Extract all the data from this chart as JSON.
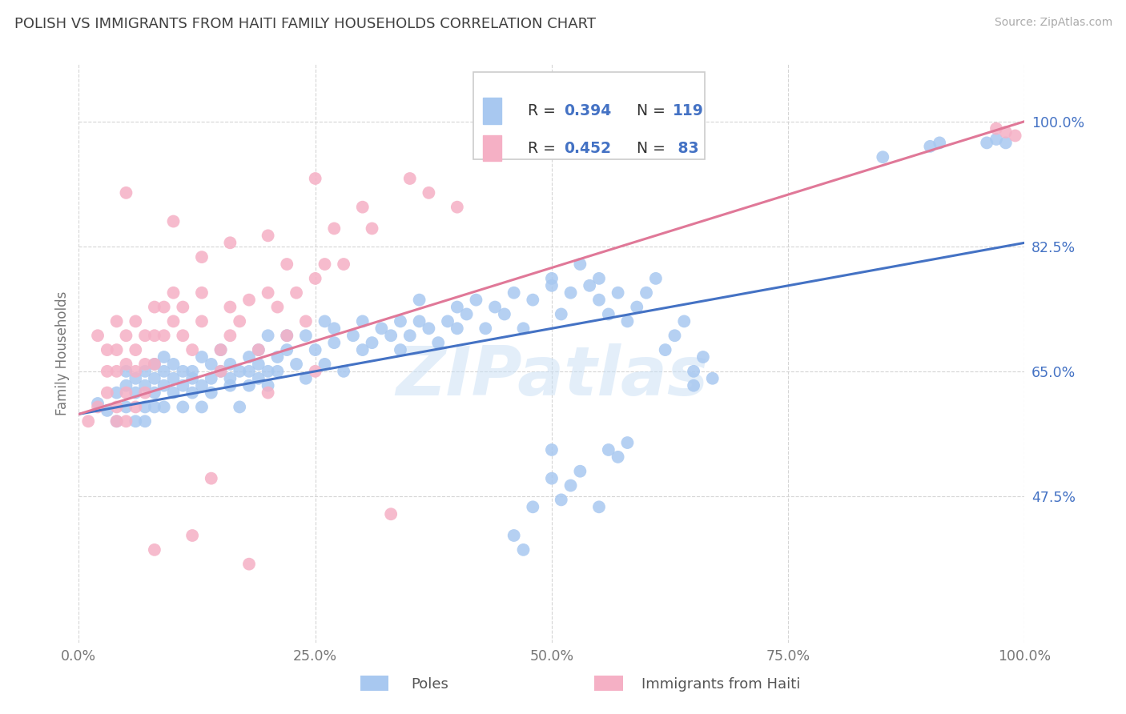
{
  "title": "POLISH VS IMMIGRANTS FROM HAITI FAMILY HOUSEHOLDS CORRELATION CHART",
  "source": "Source: ZipAtlas.com",
  "ylabel": "Family Households",
  "watermark": "ZIPatlas",
  "legend_blue_r": "0.394",
  "legend_blue_n": "119",
  "legend_pink_r": "0.452",
  "legend_pink_n": " 83",
  "xlim": [
    0.0,
    1.0
  ],
  "ylim": [
    0.27,
    1.08
  ],
  "ytick_labels": [
    "47.5%",
    "65.0%",
    "82.5%",
    "100.0%"
  ],
  "ytick_values": [
    0.475,
    0.65,
    0.825,
    1.0
  ],
  "xtick_labels": [
    "0.0%",
    "25.0%",
    "50.0%",
    "75.0%",
    "100.0%"
  ],
  "xtick_values": [
    0.0,
    0.25,
    0.5,
    0.75,
    1.0
  ],
  "blue_color": "#a8c8f0",
  "pink_color": "#f5b0c5",
  "blue_line_color": "#4472c4",
  "pink_line_color": "#e07898",
  "title_color": "#404040",
  "blue_scatter": [
    [
      0.02,
      0.605
    ],
    [
      0.03,
      0.595
    ],
    [
      0.04,
      0.62
    ],
    [
      0.04,
      0.58
    ],
    [
      0.05,
      0.63
    ],
    [
      0.05,
      0.6
    ],
    [
      0.05,
      0.65
    ],
    [
      0.06,
      0.58
    ],
    [
      0.06,
      0.62
    ],
    [
      0.06,
      0.64
    ],
    [
      0.07,
      0.6
    ],
    [
      0.07,
      0.63
    ],
    [
      0.07,
      0.65
    ],
    [
      0.07,
      0.58
    ],
    [
      0.08,
      0.62
    ],
    [
      0.08,
      0.64
    ],
    [
      0.08,
      0.66
    ],
    [
      0.08,
      0.6
    ],
    [
      0.09,
      0.63
    ],
    [
      0.09,
      0.65
    ],
    [
      0.09,
      0.67
    ],
    [
      0.09,
      0.6
    ],
    [
      0.1,
      0.64
    ],
    [
      0.1,
      0.62
    ],
    [
      0.1,
      0.66
    ],
    [
      0.11,
      0.63
    ],
    [
      0.11,
      0.65
    ],
    [
      0.11,
      0.6
    ],
    [
      0.12,
      0.64
    ],
    [
      0.12,
      0.62
    ],
    [
      0.12,
      0.65
    ],
    [
      0.13,
      0.67
    ],
    [
      0.13,
      0.6
    ],
    [
      0.13,
      0.63
    ],
    [
      0.14,
      0.66
    ],
    [
      0.14,
      0.62
    ],
    [
      0.14,
      0.64
    ],
    [
      0.15,
      0.68
    ],
    [
      0.15,
      0.65
    ],
    [
      0.16,
      0.63
    ],
    [
      0.16,
      0.66
    ],
    [
      0.16,
      0.64
    ],
    [
      0.17,
      0.65
    ],
    [
      0.17,
      0.6
    ],
    [
      0.18,
      0.63
    ],
    [
      0.18,
      0.67
    ],
    [
      0.18,
      0.65
    ],
    [
      0.19,
      0.64
    ],
    [
      0.19,
      0.66
    ],
    [
      0.19,
      0.68
    ],
    [
      0.2,
      0.65
    ],
    [
      0.2,
      0.7
    ],
    [
      0.2,
      0.63
    ],
    [
      0.21,
      0.67
    ],
    [
      0.21,
      0.65
    ],
    [
      0.22,
      0.68
    ],
    [
      0.22,
      0.7
    ],
    [
      0.23,
      0.66
    ],
    [
      0.24,
      0.7
    ],
    [
      0.24,
      0.64
    ],
    [
      0.25,
      0.68
    ],
    [
      0.26,
      0.72
    ],
    [
      0.26,
      0.66
    ],
    [
      0.27,
      0.69
    ],
    [
      0.27,
      0.71
    ],
    [
      0.28,
      0.65
    ],
    [
      0.29,
      0.7
    ],
    [
      0.3,
      0.72
    ],
    [
      0.3,
      0.68
    ],
    [
      0.31,
      0.69
    ],
    [
      0.32,
      0.71
    ],
    [
      0.33,
      0.7
    ],
    [
      0.34,
      0.72
    ],
    [
      0.34,
      0.68
    ],
    [
      0.35,
      0.7
    ],
    [
      0.36,
      0.72
    ],
    [
      0.36,
      0.75
    ],
    [
      0.37,
      0.71
    ],
    [
      0.38,
      0.69
    ],
    [
      0.39,
      0.72
    ],
    [
      0.4,
      0.74
    ],
    [
      0.4,
      0.71
    ],
    [
      0.41,
      0.73
    ],
    [
      0.42,
      0.75
    ],
    [
      0.43,
      0.71
    ],
    [
      0.44,
      0.74
    ],
    [
      0.45,
      0.73
    ],
    [
      0.46,
      0.76
    ],
    [
      0.47,
      0.71
    ],
    [
      0.48,
      0.75
    ],
    [
      0.5,
      0.78
    ],
    [
      0.5,
      0.77
    ],
    [
      0.51,
      0.73
    ],
    [
      0.52,
      0.76
    ],
    [
      0.53,
      0.8
    ],
    [
      0.54,
      0.77
    ],
    [
      0.55,
      0.75
    ],
    [
      0.55,
      0.78
    ],
    [
      0.56,
      0.73
    ],
    [
      0.57,
      0.76
    ],
    [
      0.58,
      0.72
    ],
    [
      0.59,
      0.74
    ],
    [
      0.6,
      0.76
    ],
    [
      0.61,
      0.78
    ],
    [
      0.62,
      0.68
    ],
    [
      0.63,
      0.7
    ],
    [
      0.64,
      0.72
    ],
    [
      0.65,
      0.65
    ],
    [
      0.65,
      0.63
    ],
    [
      0.66,
      0.67
    ],
    [
      0.67,
      0.64
    ],
    [
      0.46,
      0.42
    ],
    [
      0.47,
      0.4
    ],
    [
      0.48,
      0.46
    ],
    [
      0.5,
      0.5
    ],
    [
      0.5,
      0.54
    ],
    [
      0.51,
      0.47
    ],
    [
      0.52,
      0.49
    ],
    [
      0.53,
      0.51
    ],
    [
      0.55,
      0.46
    ],
    [
      0.56,
      0.54
    ],
    [
      0.57,
      0.53
    ],
    [
      0.58,
      0.55
    ],
    [
      0.98,
      0.97
    ],
    [
      0.97,
      0.975
    ],
    [
      0.96,
      0.97
    ],
    [
      0.9,
      0.965
    ],
    [
      0.91,
      0.97
    ],
    [
      0.85,
      0.95
    ]
  ],
  "pink_scatter": [
    [
      0.01,
      0.58
    ],
    [
      0.02,
      0.7
    ],
    [
      0.02,
      0.6
    ],
    [
      0.03,
      0.68
    ],
    [
      0.03,
      0.65
    ],
    [
      0.03,
      0.62
    ],
    [
      0.04,
      0.72
    ],
    [
      0.04,
      0.68
    ],
    [
      0.04,
      0.65
    ],
    [
      0.04,
      0.6
    ],
    [
      0.04,
      0.58
    ],
    [
      0.05,
      0.7
    ],
    [
      0.05,
      0.66
    ],
    [
      0.05,
      0.62
    ],
    [
      0.05,
      0.58
    ],
    [
      0.06,
      0.72
    ],
    [
      0.06,
      0.68
    ],
    [
      0.06,
      0.65
    ],
    [
      0.06,
      0.6
    ],
    [
      0.07,
      0.7
    ],
    [
      0.07,
      0.66
    ],
    [
      0.07,
      0.62
    ],
    [
      0.08,
      0.74
    ],
    [
      0.08,
      0.7
    ],
    [
      0.08,
      0.66
    ],
    [
      0.09,
      0.74
    ],
    [
      0.09,
      0.7
    ],
    [
      0.1,
      0.76
    ],
    [
      0.1,
      0.72
    ],
    [
      0.11,
      0.74
    ],
    [
      0.11,
      0.7
    ],
    [
      0.12,
      0.68
    ],
    [
      0.13,
      0.76
    ],
    [
      0.13,
      0.72
    ],
    [
      0.15,
      0.68
    ],
    [
      0.15,
      0.65
    ],
    [
      0.16,
      0.74
    ],
    [
      0.16,
      0.7
    ],
    [
      0.17,
      0.72
    ],
    [
      0.18,
      0.75
    ],
    [
      0.19,
      0.68
    ],
    [
      0.2,
      0.76
    ],
    [
      0.2,
      0.62
    ],
    [
      0.21,
      0.74
    ],
    [
      0.22,
      0.8
    ],
    [
      0.22,
      0.7
    ],
    [
      0.23,
      0.76
    ],
    [
      0.24,
      0.72
    ],
    [
      0.25,
      0.78
    ],
    [
      0.25,
      0.65
    ],
    [
      0.26,
      0.8
    ],
    [
      0.27,
      0.85
    ],
    [
      0.28,
      0.8
    ],
    [
      0.3,
      0.88
    ],
    [
      0.31,
      0.85
    ],
    [
      0.05,
      0.9
    ],
    [
      0.1,
      0.86
    ],
    [
      0.13,
      0.81
    ],
    [
      0.16,
      0.83
    ],
    [
      0.2,
      0.84
    ],
    [
      0.25,
      0.92
    ],
    [
      0.33,
      0.45
    ],
    [
      0.35,
      0.92
    ],
    [
      0.37,
      0.9
    ],
    [
      0.4,
      0.88
    ],
    [
      0.08,
      0.4
    ],
    [
      0.12,
      0.42
    ],
    [
      0.14,
      0.5
    ],
    [
      0.18,
      0.38
    ],
    [
      0.97,
      0.99
    ],
    [
      0.98,
      0.985
    ],
    [
      0.99,
      0.98
    ]
  ],
  "blue_trendline": [
    [
      0.0,
      0.59
    ],
    [
      1.0,
      0.83
    ]
  ],
  "pink_trendline": [
    [
      0.0,
      0.59
    ],
    [
      1.0,
      1.0
    ]
  ],
  "background_color": "#ffffff",
  "grid_color": "#d5d5d5"
}
